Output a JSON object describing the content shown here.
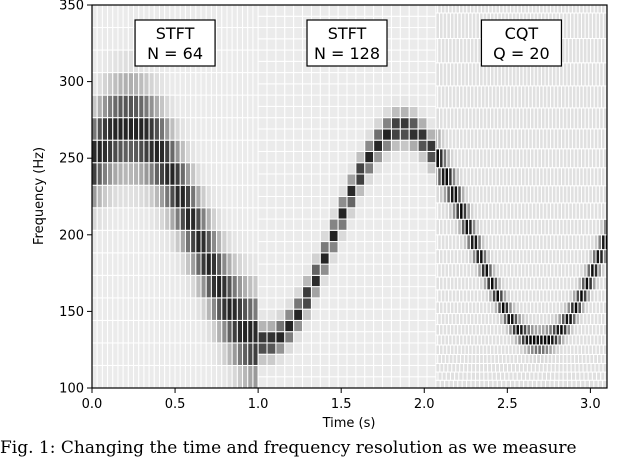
{
  "chart_data": {
    "type": "heatmap",
    "xlabel": "Time (s)",
    "ylabel": "Frequency (Hz)",
    "xlim": [
      0.0,
      3.1
    ],
    "ylim": [
      100,
      350
    ],
    "xticks": [
      "0.0",
      "0.5",
      "1.0",
      "1.5",
      "2.0",
      "2.5",
      "3.0"
    ],
    "yticks": [
      "100",
      "150",
      "200",
      "250",
      "300",
      "350"
    ],
    "signal": {
      "description_note": "",
      "center_hz": 200,
      "amplitude_hz": 70,
      "period_s": 1.65,
      "phase_s": 0.0
    },
    "panels": [
      {
        "label_lines": [
          "STFT",
          "N = 64"
        ],
        "t_start": 0.0,
        "t_end": 1.0,
        "kind": "stft",
        "cols": 32,
        "rows": 17
      },
      {
        "label_lines": [
          "STFT",
          "N = 128"
        ],
        "t_start": 1.0,
        "t_end": 2.07,
        "kind": "stft",
        "cols": 20,
        "rows": 34
      },
      {
        "label_lines": [
          "CQT",
          "Q = 20"
        ],
        "t_start": 2.07,
        "t_end": 3.1,
        "kind": "cqt",
        "q": 20
      }
    ]
  },
  "caption": "Fig. 1: Changing the time and frequency resolution as we measure"
}
